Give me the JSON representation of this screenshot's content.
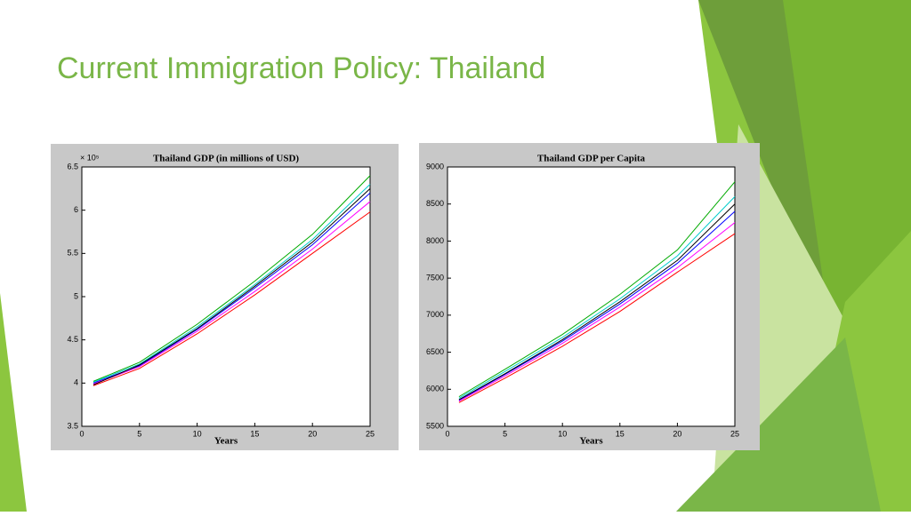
{
  "slide_title": "Current Immigration Policy: Thailand",
  "chart_data": [
    {
      "type": "line",
      "title": "Thailand GDP (in millions of USD)",
      "annotation": "× 10⁵",
      "xlabel": "Years",
      "x": [
        1,
        5,
        10,
        15,
        20,
        25
      ],
      "series": [
        {
          "color": "#ff0000",
          "values": [
            3.97,
            4.17,
            4.57,
            5.02,
            5.5,
            5.98
          ]
        },
        {
          "color": "#0000ff",
          "values": [
            4.0,
            4.2,
            4.62,
            5.1,
            5.6,
            6.2
          ]
        },
        {
          "color": "#00aa00",
          "values": [
            4.02,
            4.24,
            4.68,
            5.18,
            5.72,
            6.4
          ]
        },
        {
          "color": "#ff00ff",
          "values": [
            3.99,
            4.19,
            4.6,
            5.06,
            5.55,
            6.1
          ]
        },
        {
          "color": "#00cccc",
          "values": [
            4.01,
            4.22,
            4.65,
            5.14,
            5.66,
            6.3
          ]
        },
        {
          "color": "#000000",
          "values": [
            3.98,
            4.21,
            4.63,
            5.12,
            5.63,
            6.25
          ]
        }
      ],
      "xlim": [
        0,
        25
      ],
      "xticks": [
        0,
        5,
        10,
        15,
        20,
        25
      ],
      "ylim": [
        3.5,
        6.5
      ],
      "yticks": [
        3.5,
        4,
        4.5,
        5,
        5.5,
        6,
        6.5
      ]
    },
    {
      "type": "line",
      "title": "Thailand GDP per Capita",
      "xlabel": "Years",
      "x": [
        1,
        5,
        10,
        15,
        20,
        25
      ],
      "series": [
        {
          "color": "#ff0000",
          "values": [
            5820,
            6150,
            6580,
            7050,
            7580,
            8100
          ]
        },
        {
          "color": "#0000ff",
          "values": [
            5850,
            6200,
            6650,
            7150,
            7700,
            8400
          ]
        },
        {
          "color": "#00aa00",
          "values": [
            5900,
            6270,
            6740,
            7280,
            7880,
            8800
          ]
        },
        {
          "color": "#ff00ff",
          "values": [
            5840,
            6180,
            6620,
            7110,
            7640,
            8250
          ]
        },
        {
          "color": "#00cccc",
          "values": [
            5880,
            6240,
            6700,
            7220,
            7800,
            8600
          ]
        },
        {
          "color": "#000000",
          "values": [
            5860,
            6210,
            6670,
            7180,
            7740,
            8500
          ]
        }
      ],
      "xlim": [
        0,
        25
      ],
      "xticks": [
        0,
        5,
        10,
        15,
        20,
        25
      ],
      "ylim": [
        5500,
        9000
      ],
      "yticks": [
        5500,
        6000,
        6500,
        7000,
        7500,
        8000,
        8500,
        9000
      ]
    }
  ]
}
